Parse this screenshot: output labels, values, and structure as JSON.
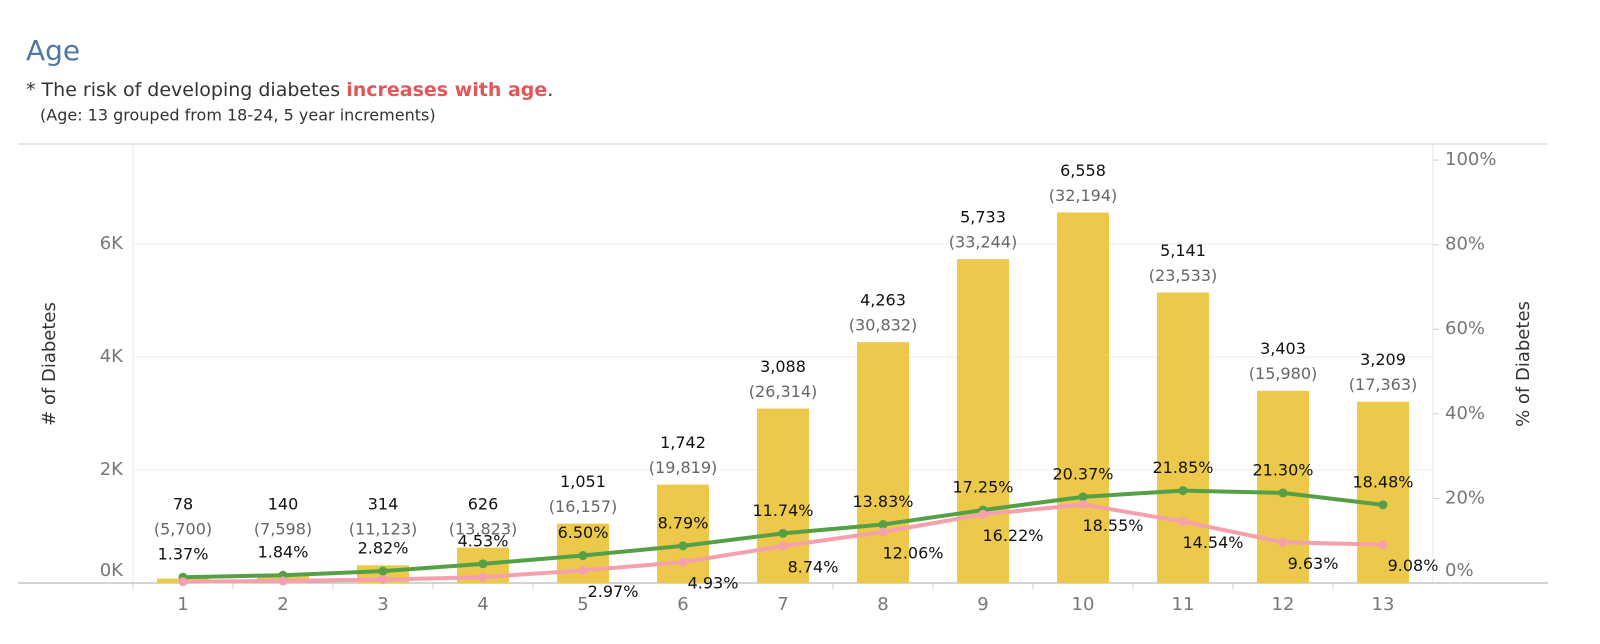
{
  "chart_data": {
    "type": "bar",
    "title": "Age",
    "subtitle": [
      "* The risk of developing diabetes ",
      "increases with age",
      "."
    ],
    "note": "(Age: 13 grouped from 18-24, 5 year increments)",
    "y_label": "# of Diabetes",
    "y2_label": "% of Diabetes",
    "categories": [
      "1",
      "2",
      "3",
      "4",
      "5",
      "6",
      "7",
      "8",
      "9",
      "10",
      "11",
      "12",
      "13"
    ],
    "values": [
      78,
      140,
      314,
      626,
      1051,
      1742,
      3088,
      4263,
      5733,
      6558,
      5141,
      3403,
      3209
    ],
    "value_labels": [
      "78",
      "140",
      "314",
      "626",
      "1,051",
      "1,742",
      "3,088",
      "4,263",
      "5,733",
      "6,558",
      "5,141",
      "3,403",
      "3,209"
    ],
    "total_labels": [
      "(5,700)",
      "(7,598)",
      "(11,123)",
      "(13,823)",
      "(16,157)",
      "(19,819)",
      "(26,314)",
      "(30,832)",
      "(33,244)",
      "(32,194)",
      "(23,533)",
      "(15,980)",
      "(17,363)"
    ],
    "color": "#ecc94b",
    "series": [
      {
        "color": "#55a047",
        "axis": "y2",
        "values": [
          1.37,
          1.84,
          2.82,
          4.53,
          6.5,
          8.79,
          11.74,
          13.83,
          17.25,
          20.37,
          21.85,
          21.3,
          18.48
        ],
        "value_labels": [
          "1.37%",
          "1.84%",
          "2.82%",
          "4.53%",
          "6.50%",
          "8.79%",
          "11.74%",
          "13.83%",
          "17.25%",
          "20.37%",
          "21.85%",
          "21.30%",
          "18.48%"
        ]
      },
      {
        "color": "#f5a0ad",
        "axis": "y2",
        "values": [
          0.3,
          0.5,
          0.8,
          1.4,
          2.97,
          4.93,
          8.74,
          12.06,
          16.22,
          18.55,
          14.54,
          9.63,
          9.08
        ],
        "value_labels": [
          null,
          null,
          null,
          null,
          "2.97%",
          "4.93%",
          "8.74%",
          "12.06%",
          "16.22%",
          "18.55%",
          "14.54%",
          "9.63%",
          "9.08%"
        ]
      }
    ],
    "ylim": [
      0,
      7770
    ],
    "yticks": [
      {
        "value": 0,
        "label": "0K"
      },
      {
        "value": 2000,
        "label": "2K"
      },
      {
        "value": 4000,
        "label": "4K"
      },
      {
        "value": 6000,
        "label": "6K"
      }
    ],
    "y2lim": [
      0,
      103.8
    ],
    "y2ticks": [
      {
        "value": 0,
        "label": "0%"
      },
      {
        "value": 20,
        "label": "20%"
      },
      {
        "value": 40,
        "label": "40%"
      },
      {
        "value": 60,
        "label": "60%"
      },
      {
        "value": 80,
        "label": "80%"
      },
      {
        "value": 100,
        "label": "100%"
      }
    ],
    "grid": true
  }
}
